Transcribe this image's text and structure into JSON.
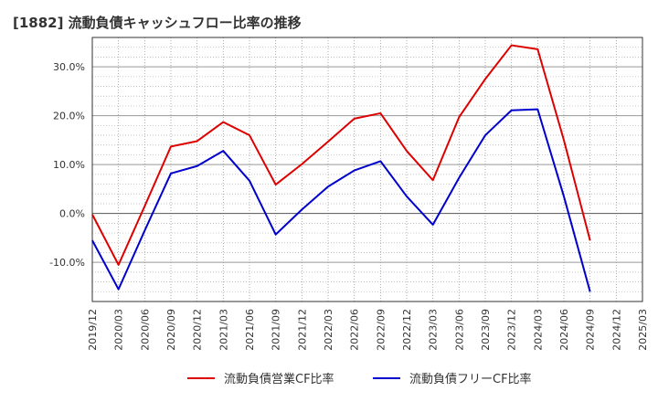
{
  "chart_data": {
    "type": "line",
    "title": "[1882]  流動負債キャッシュフロー比率の推移",
    "xlabel": "",
    "ylabel": "",
    "ylim": [
      -18,
      36
    ],
    "grid": true,
    "legend_position": "bottom",
    "y_ticks": [
      30,
      20,
      10,
      0,
      -10
    ],
    "y_tick_labels": [
      "30.0%",
      "20.0%",
      "10.0%",
      "0.0%",
      "-10.0%"
    ],
    "categories": [
      "2019/12",
      "2020/03",
      "2020/06",
      "2020/09",
      "2020/12",
      "2021/03",
      "2021/06",
      "2021/09",
      "2021/12",
      "2022/03",
      "2022/06",
      "2022/09",
      "2022/12",
      "2023/03",
      "2023/06",
      "2023/09",
      "2023/12",
      "2024/03",
      "2024/06",
      "2024/09",
      "2024/12",
      "2025/03"
    ],
    "series": [
      {
        "name": "流動負債営業CF比率",
        "color": "#dd0000",
        "values": [
          -0.2,
          -10.5,
          1.5,
          13.7,
          14.8,
          18.7,
          16.0,
          5.9,
          10.1,
          14.7,
          19.4,
          20.5,
          12.8,
          6.8,
          19.7,
          27.5,
          34.4,
          33.6,
          15.0,
          -5.5,
          null,
          null
        ]
      },
      {
        "name": "流動負債フリーCF比率",
        "color": "#0000cc",
        "values": [
          -5.5,
          -15.5,
          -3.5,
          8.2,
          9.7,
          12.8,
          6.7,
          -4.3,
          0.8,
          5.5,
          8.8,
          10.7,
          3.5,
          -2.3,
          7.3,
          16.0,
          21.1,
          21.3,
          3.5,
          -16.0,
          null,
          null
        ]
      }
    ]
  }
}
